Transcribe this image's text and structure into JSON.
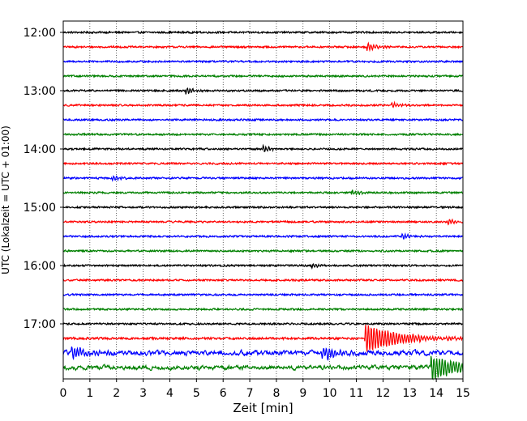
{
  "chart_data": {
    "type": "line",
    "title": "",
    "xlabel": "Zeit  [min]",
    "ylabel": "UTC (Lokalzeit = UTC + 01:00)",
    "xlim": [
      0,
      15
    ],
    "x_ticks": [
      "0",
      "1",
      "2",
      "3",
      "4",
      "5",
      "6",
      "7",
      "8",
      "9",
      "10",
      "11",
      "12",
      "13",
      "14",
      "15"
    ],
    "y_ticks": [
      "12:00",
      "13:00",
      "14:00",
      "15:00",
      "16:00",
      "17:00"
    ],
    "grid": "vertical dotted at each minute",
    "line_colors": [
      "#000000",
      "#ff0000",
      "#0000ff",
      "#008000"
    ],
    "traces": [
      {
        "start": "12:00",
        "amplitude": 0.25
      },
      {
        "start": "12:15",
        "amplitude": 0.25,
        "events": [
          {
            "t": 11.4,
            "amp": 0.9,
            "dur": 0.4
          }
        ]
      },
      {
        "start": "12:30",
        "amplitude": 0.25
      },
      {
        "start": "12:45",
        "amplitude": 0.25
      },
      {
        "start": "13:00",
        "amplitude": 0.25,
        "events": [
          {
            "t": 4.6,
            "amp": 0.8,
            "dur": 0.3
          }
        ]
      },
      {
        "start": "13:15",
        "amplitude": 0.25,
        "events": [
          {
            "t": 12.3,
            "amp": 0.8,
            "dur": 0.3
          }
        ]
      },
      {
        "start": "13:30",
        "amplitude": 0.25
      },
      {
        "start": "13:45",
        "amplitude": 0.25
      },
      {
        "start": "14:00",
        "amplitude": 0.25,
        "events": [
          {
            "t": 7.5,
            "amp": 0.7,
            "dur": 0.3
          }
        ]
      },
      {
        "start": "14:15",
        "amplitude": 0.25
      },
      {
        "start": "14:30",
        "amplitude": 0.25,
        "events": [
          {
            "t": 1.8,
            "amp": 0.7,
            "dur": 0.3
          }
        ]
      },
      {
        "start": "14:45",
        "amplitude": 0.25,
        "events": [
          {
            "t": 10.8,
            "amp": 0.7,
            "dur": 0.3
          }
        ]
      },
      {
        "start": "15:00",
        "amplitude": 0.25
      },
      {
        "start": "15:15",
        "amplitude": 0.25,
        "events": [
          {
            "t": 14.4,
            "amp": 0.9,
            "dur": 0.3
          }
        ]
      },
      {
        "start": "15:30",
        "amplitude": 0.25,
        "events": [
          {
            "t": 12.7,
            "amp": 0.7,
            "dur": 0.3
          }
        ]
      },
      {
        "start": "15:45",
        "amplitude": 0.25
      },
      {
        "start": "16:00",
        "amplitude": 0.25,
        "events": [
          {
            "t": 9.3,
            "amp": 0.6,
            "dur": 0.3
          }
        ]
      },
      {
        "start": "16:15",
        "amplitude": 0.25
      },
      {
        "start": "16:30",
        "amplitude": 0.25
      },
      {
        "start": "16:45",
        "amplitude": 0.25
      },
      {
        "start": "17:00",
        "amplitude": 0.25
      },
      {
        "start": "17:15",
        "amplitude": 0.3,
        "events": [
          {
            "t": 11.3,
            "amp": 3.5,
            "dur": 1.3
          }
        ]
      },
      {
        "start": "17:30",
        "amplitude": 1.1,
        "events": [
          {
            "t": 0.3,
            "amp": 1.5,
            "dur": 0.6
          },
          {
            "t": 9.7,
            "amp": 1.6,
            "dur": 0.6
          }
        ]
      },
      {
        "start": "17:45",
        "amplitude": 1.0,
        "events": [
          {
            "t": 13.8,
            "amp": 3.2,
            "dur": 1.0
          }
        ]
      }
    ]
  }
}
